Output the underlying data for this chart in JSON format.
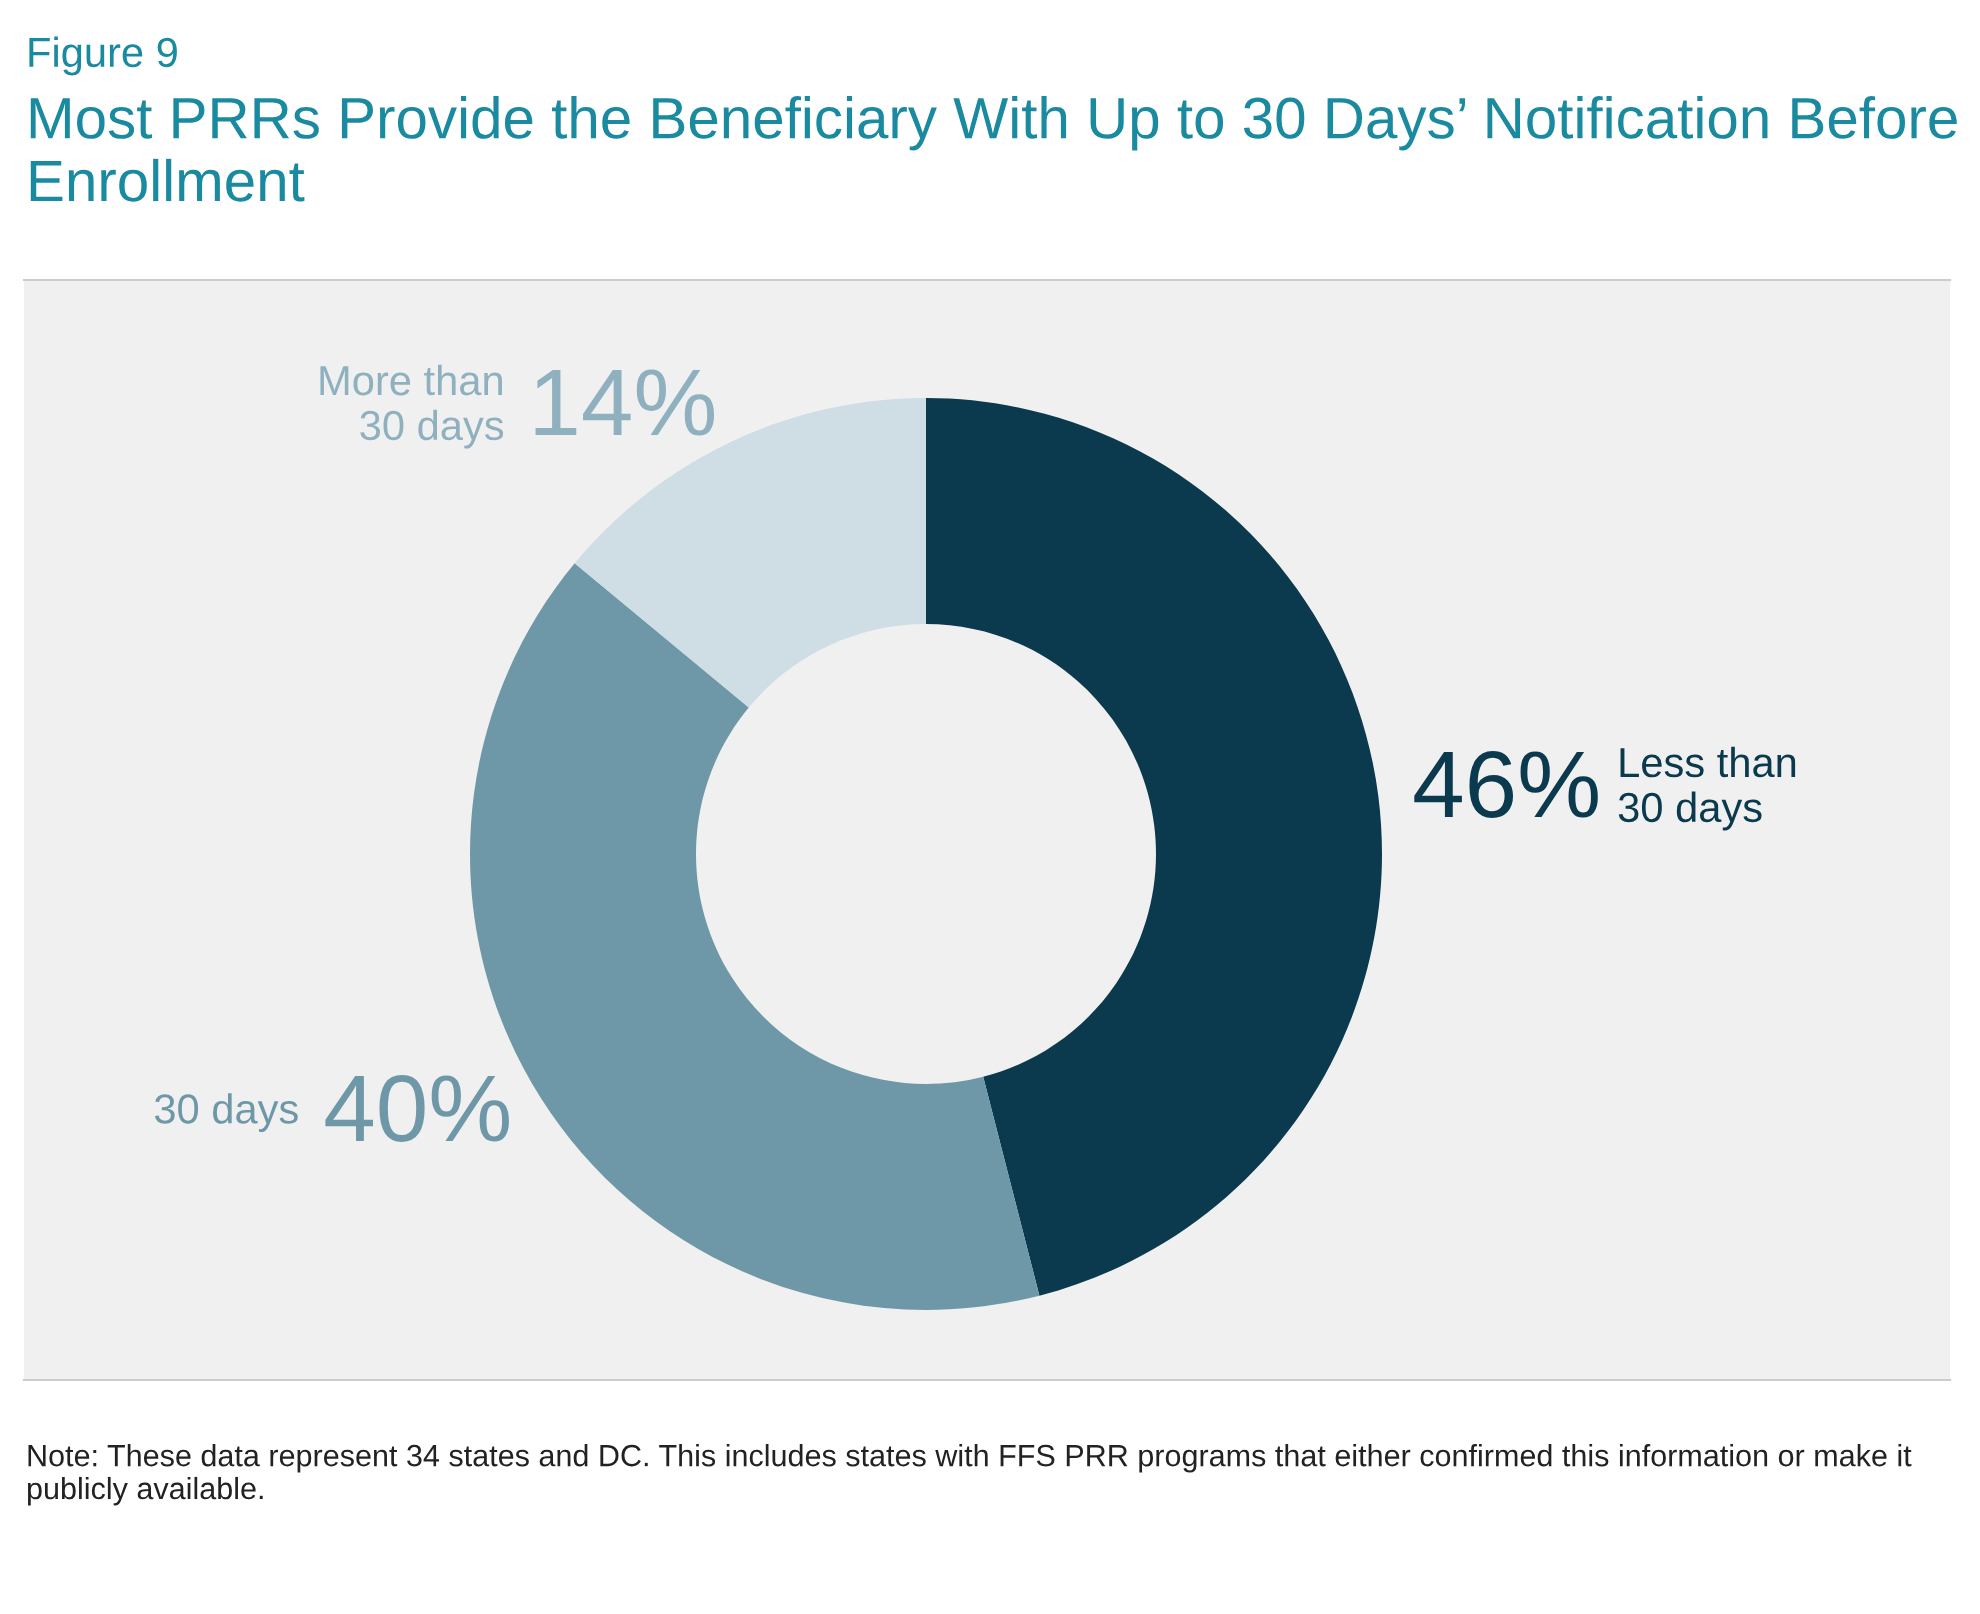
{
  "chart_data": {
    "type": "donut",
    "subtitle": "Figure 9",
    "title": "Most PRRs Provide the Beneficiary With Up to 30 Days’ Notification Before Enrollment",
    "categories": [
      "Less than\n30 days",
      "30 days",
      "More than\n30 days"
    ],
    "values": [
      46,
      40,
      14
    ],
    "colors": [
      "#0b3a4e",
      "#6e98a8",
      "#cfdde4"
    ],
    "value_labels": [
      "46%",
      "40%",
      "14%"
    ],
    "annotations": [
      "Note: These data represent 34 states and DC. This includes states with FFS PRR programs that either confirmed this information or make it publicly available."
    ]
  }
}
